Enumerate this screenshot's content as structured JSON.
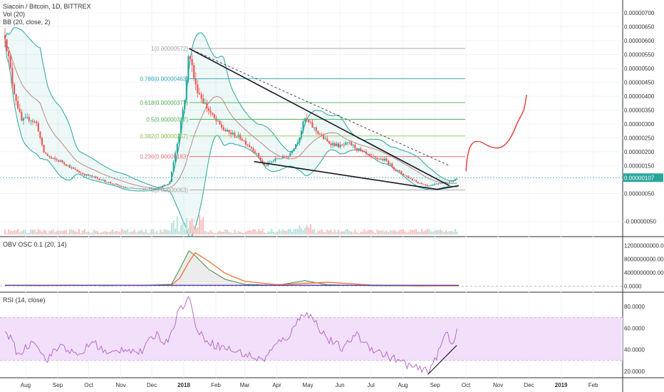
{
  "header": {
    "symbol": "Siacoin / Bitcoin, 1D, BITTREX",
    "vol_label": "Vol (20)",
    "bb_label": "BB (20, close, 2)"
  },
  "panes": {
    "obv_label": "OBV OSC 0.1 (20, 14)",
    "rsi_label": "RSI (14, close)"
  },
  "colors": {
    "up": "#26a69a",
    "down": "#ef5350",
    "bb_band": "#26a69a",
    "bb_basis": "#b0706a",
    "trendline": "#131722",
    "projection": "#e53935",
    "rsi_line": "#b05fc4",
    "rsi_zone": "#f2e0fb",
    "obv_line": "#5b3fb0",
    "obv_signal": "#f07b3f",
    "price_badge": "#26a69a"
  },
  "chart_data": [
    {
      "type": "candlestick",
      "title": "Siacoin / Bitcoin, 1D, BITTREX",
      "scale": "price (BTC)",
      "ylim": [
        -5e-07,
        7e-07
      ],
      "y_ticks": [
        "0.00000700",
        "0.00000650",
        "0.00000600",
        "0.00000550",
        "0.00000500",
        "0.00000450",
        "0.00000400",
        "0.00000350",
        "0.00000300",
        "0.00000250",
        "0.00000200",
        "0.00000150",
        "0.00000100",
        "0.00000050",
        "-0.00000050"
      ],
      "x_ticks": [
        "Aug",
        "Sep",
        "Oct",
        "Nov",
        "Dec",
        "2018",
        "Feb",
        "Mar",
        "Apr",
        "May",
        "Jun",
        "Jul",
        "Aug",
        "Sep",
        "Oct",
        "Nov",
        "Dec",
        "2019",
        "Feb"
      ],
      "current_price": "0.00000107",
      "close_path": [
        {
          "x": "2017-07-12",
          "y": 6.2e-06
        },
        {
          "x": "2017-07-20",
          "y": 4.3e-06
        },
        {
          "x": "2017-07-28",
          "y": 3.1e-06
        },
        {
          "x": "2017-08-05",
          "y": 3.2e-06
        },
        {
          "x": "2017-08-12",
          "y": 3e-06
        },
        {
          "x": "2017-08-18",
          "y": 2e-06
        },
        {
          "x": "2017-08-26",
          "y": 1.75e-06
        },
        {
          "x": "2017-09-05",
          "y": 1.65e-06
        },
        {
          "x": "2017-09-15",
          "y": 1.4e-06
        },
        {
          "x": "2017-09-25",
          "y": 1.2e-06
        },
        {
          "x": "2017-10-05",
          "y": 1.1e-06
        },
        {
          "x": "2017-10-20",
          "y": 9e-07
        },
        {
          "x": "2017-11-05",
          "y": 7e-07
        },
        {
          "x": "2017-11-20",
          "y": 6.6e-07
        },
        {
          "x": "2017-12-05",
          "y": 6.8e-07
        },
        {
          "x": "2017-12-18",
          "y": 8.5e-07
        },
        {
          "x": "2017-12-26",
          "y": 2.4e-06
        },
        {
          "x": "2018-01-03",
          "y": 4.2e-06
        },
        {
          "x": "2018-01-06",
          "y": 5.72e-06
        },
        {
          "x": "2018-01-12",
          "y": 4.4e-06
        },
        {
          "x": "2018-01-20",
          "y": 3.8e-06
        },
        {
          "x": "2018-01-30",
          "y": 3.2e-06
        },
        {
          "x": "2018-02-10",
          "y": 2.75e-06
        },
        {
          "x": "2018-02-25",
          "y": 2.5e-06
        },
        {
          "x": "2018-03-10",
          "y": 2.05e-06
        },
        {
          "x": "2018-03-20",
          "y": 1.5e-06
        },
        {
          "x": "2018-04-01",
          "y": 1.75e-06
        },
        {
          "x": "2018-04-12",
          "y": 1.85e-06
        },
        {
          "x": "2018-04-22",
          "y": 2.45e-06
        },
        {
          "x": "2018-04-28",
          "y": 3.2e-06
        },
        {
          "x": "2018-05-08",
          "y": 2.8e-06
        },
        {
          "x": "2018-05-20",
          "y": 2.35e-06
        },
        {
          "x": "2018-06-01",
          "y": 2.2e-06
        },
        {
          "x": "2018-06-10",
          "y": 2.3e-06
        },
        {
          "x": "2018-06-20",
          "y": 2.05e-06
        },
        {
          "x": "2018-07-01",
          "y": 1.8e-06
        },
        {
          "x": "2018-07-15",
          "y": 1.7e-06
        },
        {
          "x": "2018-07-25",
          "y": 1.35e-06
        },
        {
          "x": "2018-08-05",
          "y": 1.1e-06
        },
        {
          "x": "2018-08-15",
          "y": 9e-07
        },
        {
          "x": "2018-08-25",
          "y": 7.8e-07
        },
        {
          "x": "2018-09-05",
          "y": 8.8e-07
        },
        {
          "x": "2018-09-15",
          "y": 9.2e-07
        },
        {
          "x": "2018-09-24",
          "y": 1.07e-06
        }
      ],
      "fibonacci": [
        {
          "label": "1(0.00000572)",
          "level": 5.72e-06,
          "color": "#9e9e9e"
        },
        {
          "label": "0.786(0.00000463)",
          "level": 4.63e-06,
          "color": "#2ca3b8"
        },
        {
          "label": "0.618(0.00000377)",
          "level": 3.77e-06,
          "color": "#4caf50"
        },
        {
          "label": "0.5(0.00000317)",
          "level": 3.17e-06,
          "color": "#4caf50"
        },
        {
          "label": "0.382(0.00000257)",
          "level": 2.57e-06,
          "color": "#8bc34a"
        },
        {
          "label": "0.236(0.00000183)",
          "level": 1.83e-06,
          "color": "#e57373"
        },
        {
          "label": "0(0.00000063)",
          "level": 6.3e-07,
          "color": "#9e9e9e"
        }
      ]
    },
    {
      "type": "line",
      "title": "OBV OSC 0.1 (20, 14)",
      "y_ticks": [
        "12000000000.0000",
        "8000000000.0000",
        "4000000000.0000",
        "0.0000"
      ],
      "ylim": [
        -1000000000,
        13000000000
      ],
      "series_points": [
        {
          "x": "2017-07-12",
          "y": 200000000
        },
        {
          "x": "2017-08-15",
          "y": 100000000
        },
        {
          "x": "2017-09-15",
          "y": 300000000
        },
        {
          "x": "2017-10-15",
          "y": 100000000
        },
        {
          "x": "2017-11-20",
          "y": 200000000
        },
        {
          "x": "2017-12-20",
          "y": 500000000
        },
        {
          "x": "2017-12-28",
          "y": 5000000000
        },
        {
          "x": "2018-01-06",
          "y": 10500000000
        },
        {
          "x": "2018-01-12",
          "y": 9000000000
        },
        {
          "x": "2018-01-25",
          "y": 5000000000
        },
        {
          "x": "2018-02-10",
          "y": 2000000000
        },
        {
          "x": "2018-03-01",
          "y": 500000000
        },
        {
          "x": "2018-04-01",
          "y": 200000000
        },
        {
          "x": "2018-04-28",
          "y": 1600000000
        },
        {
          "x": "2018-05-20",
          "y": 400000000
        },
        {
          "x": "2018-07-01",
          "y": 100000000
        },
        {
          "x": "2018-08-15",
          "y": 0
        },
        {
          "x": "2018-09-24",
          "y": 100000000
        }
      ]
    },
    {
      "type": "line",
      "title": "RSI (14, close)",
      "y_ticks": [
        "80.0000",
        "60.0000",
        "40.0000",
        "20.0000"
      ],
      "ylim": [
        14,
        92
      ],
      "band": [
        30,
        70
      ],
      "series_points": [
        {
          "x": "2017-07-12",
          "y": 60
        },
        {
          "x": "2017-07-25",
          "y": 35
        },
        {
          "x": "2017-08-10",
          "y": 50
        },
        {
          "x": "2017-08-20",
          "y": 30
        },
        {
          "x": "2017-09-05",
          "y": 45
        },
        {
          "x": "2017-09-20",
          "y": 33
        },
        {
          "x": "2017-10-05",
          "y": 48
        },
        {
          "x": "2017-10-20",
          "y": 35
        },
        {
          "x": "2017-11-05",
          "y": 42
        },
        {
          "x": "2017-11-20",
          "y": 37
        },
        {
          "x": "2017-12-05",
          "y": 55
        },
        {
          "x": "2017-12-15",
          "y": 46
        },
        {
          "x": "2017-12-28",
          "y": 78
        },
        {
          "x": "2018-01-06",
          "y": 88
        },
        {
          "x": "2018-01-15",
          "y": 55
        },
        {
          "x": "2018-01-30",
          "y": 45
        },
        {
          "x": "2018-02-15",
          "y": 40
        },
        {
          "x": "2018-03-01",
          "y": 36
        },
        {
          "x": "2018-03-18",
          "y": 30
        },
        {
          "x": "2018-04-01",
          "y": 45
        },
        {
          "x": "2018-04-15",
          "y": 55
        },
        {
          "x": "2018-04-25",
          "y": 75
        },
        {
          "x": "2018-05-05",
          "y": 70
        },
        {
          "x": "2018-05-20",
          "y": 50
        },
        {
          "x": "2018-06-05",
          "y": 40
        },
        {
          "x": "2018-06-15",
          "y": 55
        },
        {
          "x": "2018-07-01",
          "y": 42
        },
        {
          "x": "2018-07-15",
          "y": 35
        },
        {
          "x": "2018-08-01",
          "y": 28
        },
        {
          "x": "2018-08-15",
          "y": 22
        },
        {
          "x": "2018-08-25",
          "y": 20
        },
        {
          "x": "2018-09-05",
          "y": 38
        },
        {
          "x": "2018-09-12",
          "y": 58
        },
        {
          "x": "2018-09-18",
          "y": 44
        },
        {
          "x": "2018-09-24",
          "y": 66
        }
      ]
    }
  ]
}
